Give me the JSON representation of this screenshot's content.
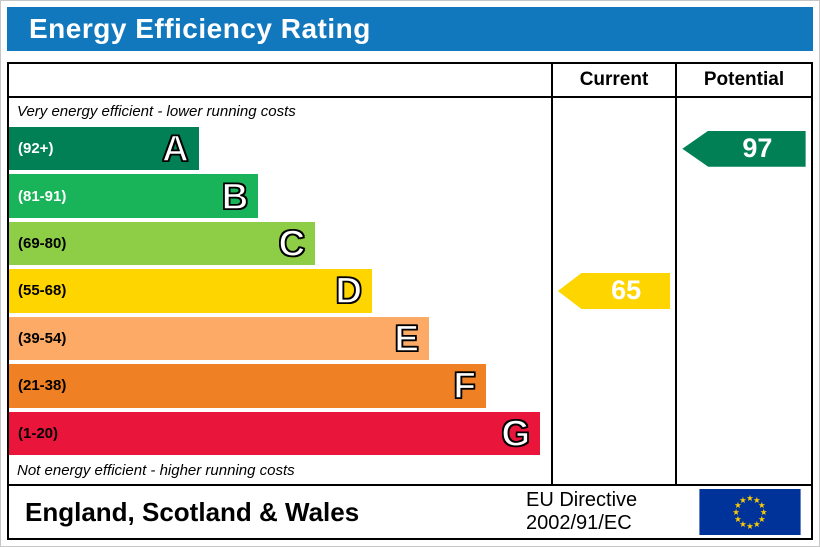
{
  "title": "Energy Efficiency Rating",
  "header": {
    "current": "Current",
    "potential": "Potential"
  },
  "notes": {
    "top": "Very energy efficient - lower running costs",
    "bottom": "Not energy efficient - higher running costs"
  },
  "footer": {
    "region": "England, Scotland & Wales",
    "directive_line1": "EU Directive",
    "directive_line2": "2002/91/EC"
  },
  "chart_data": {
    "type": "bar",
    "orientation": "horizontal",
    "title": "Energy Efficiency Rating",
    "bands": [
      {
        "letter": "A",
        "range": "(92+)",
        "color": "#008054",
        "range_text_color": "#ffffff",
        "width_pct": 35
      },
      {
        "letter": "B",
        "range": "(81-91)",
        "color": "#19b459",
        "range_text_color": "#ffffff",
        "width_pct": 46
      },
      {
        "letter": "C",
        "range": "(69-80)",
        "color": "#8dce46",
        "range_text_color": "#000000",
        "width_pct": 56.5
      },
      {
        "letter": "D",
        "range": "(55-68)",
        "color": "#ffd500",
        "range_text_color": "#000000",
        "width_pct": 67
      },
      {
        "letter": "E",
        "range": "(39-54)",
        "color": "#fcaa65",
        "range_text_color": "#000000",
        "width_pct": 77.5
      },
      {
        "letter": "F",
        "range": "(21-38)",
        "color": "#ef8023",
        "range_text_color": "#000000",
        "width_pct": 88
      },
      {
        "letter": "G",
        "range": "(1-20)",
        "color": "#e9153b",
        "range_text_color": "#000000",
        "width_pct": 98
      }
    ],
    "current": {
      "value": 65,
      "band": "D",
      "color": "#ffd500"
    },
    "potential": {
      "value": 97,
      "band": "A",
      "color": "#008054"
    }
  },
  "colors": {
    "title_bg": "#1278be",
    "eu_flag_bg": "#003399",
    "eu_star": "#ffcc00"
  }
}
